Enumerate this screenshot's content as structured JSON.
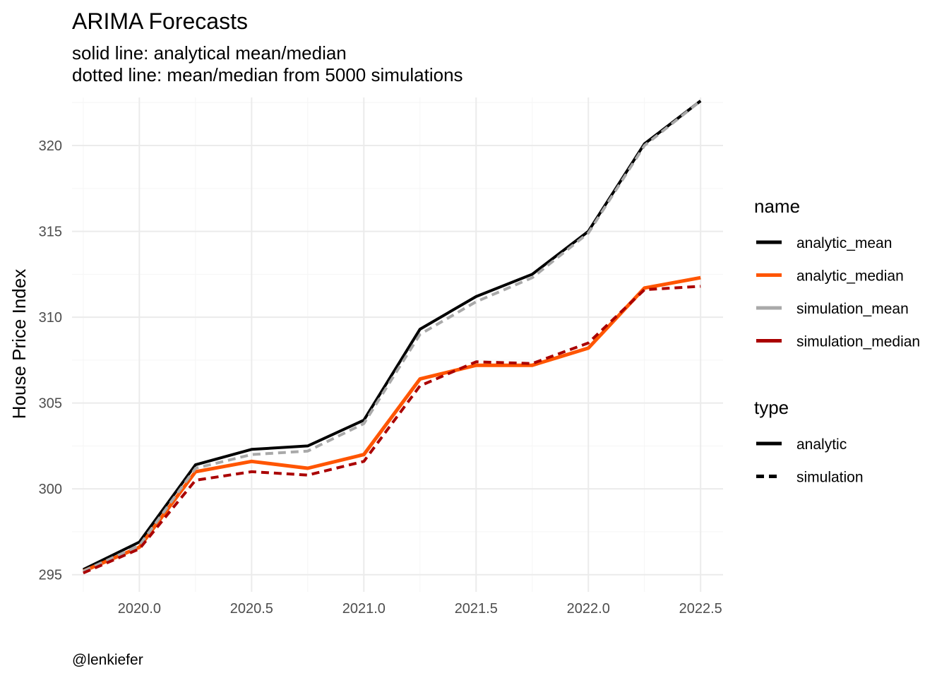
{
  "chart_data": {
    "type": "line",
    "title": "ARIMA Forecasts",
    "subtitle_lines": [
      "solid line: analytical mean/median",
      "dotted line: mean/median from 5000 simulations"
    ],
    "xlabel": "",
    "ylabel": "House Price Index",
    "caption": "@lenkiefer",
    "xlim": [
      2019.7,
      2022.6
    ],
    "ylim": [
      294,
      322.8
    ],
    "x_ticks": [
      2020.0,
      2020.5,
      2021.0,
      2021.5,
      2022.0,
      2022.5
    ],
    "x_tick_labels": [
      "2020.0",
      "2020.5",
      "2021.0",
      "2021.5",
      "2022.0",
      "2022.5"
    ],
    "y_ticks": [
      295,
      300,
      305,
      310,
      315,
      320
    ],
    "y_tick_labels": [
      "295",
      "300",
      "305",
      "310",
      "315",
      "320"
    ],
    "grid": true,
    "x": [
      2019.75,
      2020.0,
      2020.25,
      2020.5,
      2020.75,
      2021.0,
      2021.25,
      2021.5,
      2021.75,
      2022.0,
      2022.25,
      2022.5
    ],
    "series": [
      {
        "name": "analytic_mean",
        "type": "analytic",
        "color": "#000000",
        "dash": "solid",
        "values": [
          295.3,
          296.9,
          301.4,
          302.3,
          302.5,
          304.0,
          309.3,
          311.2,
          312.5,
          315.0,
          320.1,
          322.6
        ]
      },
      {
        "name": "analytic_median",
        "type": "analytic",
        "color": "#ff5500",
        "dash": "solid",
        "values": [
          295.2,
          296.6,
          301.0,
          301.6,
          301.2,
          302.0,
          306.4,
          307.2,
          307.2,
          308.2,
          311.7,
          312.3
        ]
      },
      {
        "name": "simulation_mean",
        "type": "simulation",
        "color": "#a9a9a9",
        "dash": "dashed",
        "values": [
          295.2,
          296.7,
          301.2,
          302.0,
          302.2,
          303.8,
          309.0,
          310.9,
          312.3,
          314.9,
          320.0,
          322.6
        ]
      },
      {
        "name": "simulation_median",
        "type": "simulation",
        "color": "#aa0000",
        "dash": "dashed",
        "values": [
          295.1,
          296.5,
          300.5,
          301.0,
          300.8,
          301.6,
          306.0,
          307.4,
          307.3,
          308.5,
          311.6,
          311.8
        ]
      }
    ],
    "legend": {
      "placement": "right",
      "name_title": "name",
      "name_entries": [
        {
          "label": "analytic_mean",
          "color": "#000000"
        },
        {
          "label": "analytic_median",
          "color": "#ff5500"
        },
        {
          "label": "simulation_mean",
          "color": "#a9a9a9"
        },
        {
          "label": "simulation_median",
          "color": "#aa0000"
        }
      ],
      "type_title": "type",
      "type_entries": [
        {
          "label": "analytic",
          "dash": "solid",
          "color": "#000000"
        },
        {
          "label": "simulation",
          "dash": "dashed",
          "color": "#000000"
        }
      ]
    }
  }
}
